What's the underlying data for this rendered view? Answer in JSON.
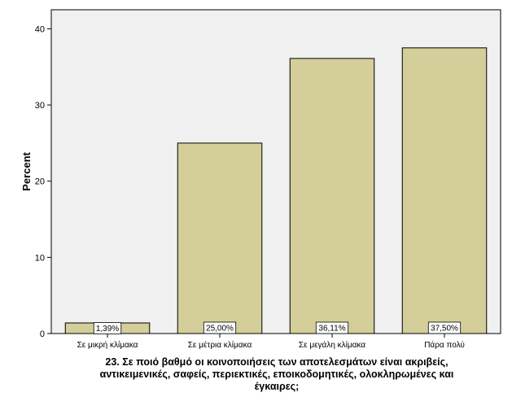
{
  "chart_data": {
    "type": "bar",
    "ylabel": "Percent",
    "xlabel_lines": [
      "23. Σε ποιό βαθμό οι κοινοποιήσεις των αποτελεσμάτων είναι ακριβείς,",
      "αντικειμενικές, σαφείς, περιεκτικές, εποικοδομητικές, ολοκληρωμένες και",
      "έγκαιρες;"
    ],
    "categories": [
      "Σε μικρή κλίμακα",
      "Σε μέτρια κλίμακα",
      "Σε μεγάλη κλίμακα",
      "Πάρα πολύ"
    ],
    "values": [
      1.39,
      25.0,
      36.11,
      37.5
    ],
    "data_labels": [
      "1,39%",
      "25,00%",
      "36,11%",
      "37,50%"
    ],
    "ylim": [
      0,
      42.5
    ],
    "yticks": [
      0,
      10,
      20,
      30,
      40
    ],
    "grid": false,
    "bar_color": "#d3ce9a",
    "plot_background": "#f0f0f0"
  }
}
